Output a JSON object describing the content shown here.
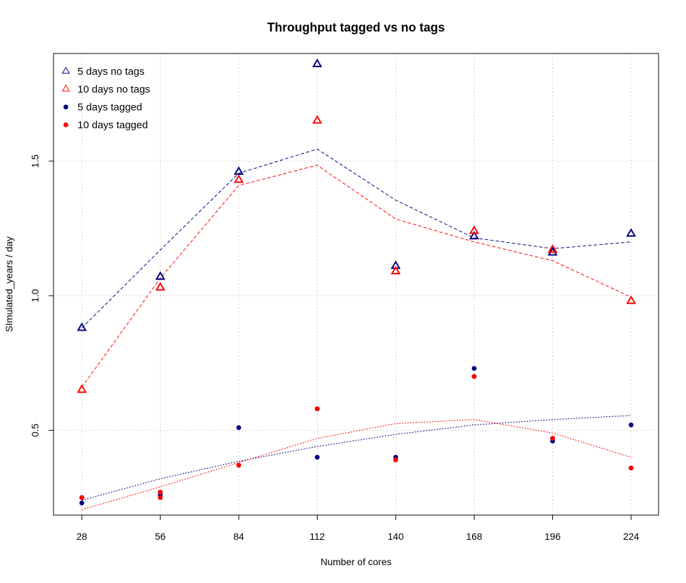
{
  "chart_data": {
    "type": "scatter",
    "title": "Throughput tagged vs no tags",
    "xlabel": "Number of cores",
    "ylabel": "SImulated_years / day",
    "x": [
      28,
      56,
      84,
      112,
      140,
      168,
      196,
      224
    ],
    "x_ticks": [
      "28",
      "56",
      "84",
      "112",
      "140",
      "168",
      "196",
      "224"
    ],
    "y_ticks": [
      "0.5",
      "1.0",
      "1.5"
    ],
    "y_tick_values": [
      0.5,
      1.0,
      1.5
    ],
    "xlim": [
      17.9,
      233.8
    ],
    "ylim": [
      0.185,
      1.9
    ],
    "grid": true,
    "legend_position": "top-left",
    "series": [
      {
        "name": "5 days no tags",
        "color": "#00007f",
        "marker": "triangle-open",
        "values": [
          0.88,
          1.07,
          1.46,
          1.86,
          1.11,
          1.22,
          1.16,
          1.23
        ],
        "trend_style": "dashed",
        "trend": [
          0.88,
          1.17,
          1.455,
          1.545,
          1.355,
          1.215,
          1.175,
          1.2
        ]
      },
      {
        "name": "10 days no tags",
        "color": "#ff0000",
        "marker": "triangle-open",
        "values": [
          0.65,
          1.03,
          1.43,
          1.65,
          1.09,
          1.24,
          1.17,
          0.98
        ],
        "trend_style": "dashed",
        "trend": [
          0.66,
          1.065,
          1.41,
          1.485,
          1.285,
          1.2,
          1.13,
          0.995
        ]
      },
      {
        "name": "5 days tagged",
        "color": "#00007f",
        "marker": "filled-circle",
        "points": [
          [
            28,
            0.23
          ],
          [
            28,
            0.25
          ],
          [
            56,
            0.26
          ],
          [
            56,
            0.27
          ],
          [
            84,
            0.51
          ],
          [
            84,
            0.37
          ],
          [
            112,
            0.4
          ],
          [
            112,
            0.58
          ],
          [
            140,
            0.4
          ],
          [
            140,
            0.39
          ],
          [
            168,
            0.73
          ],
          [
            168,
            0.7
          ],
          [
            196,
            0.46
          ],
          [
            196,
            0.47
          ],
          [
            224,
            0.52
          ],
          [
            224,
            0.36
          ]
        ],
        "trend_style": "dotted",
        "trend": [
          0.24,
          0.32,
          0.385,
          0.44,
          0.485,
          0.52,
          0.54,
          0.555
        ]
      },
      {
        "name": "10 days tagged",
        "color": "#ff0000",
        "marker": "filled-circle",
        "points": [
          [
            28,
            0.25
          ],
          [
            56,
            0.25
          ],
          [
            56,
            0.27
          ],
          [
            84,
            0.37
          ],
          [
            112,
            0.58
          ],
          [
            140,
            0.39
          ],
          [
            168,
            0.7
          ],
          [
            196,
            0.47
          ],
          [
            224,
            0.36
          ]
        ],
        "trend_style": "dotted",
        "trend": [
          0.205,
          0.29,
          0.38,
          0.47,
          0.525,
          0.54,
          0.49,
          0.4
        ]
      }
    ]
  }
}
